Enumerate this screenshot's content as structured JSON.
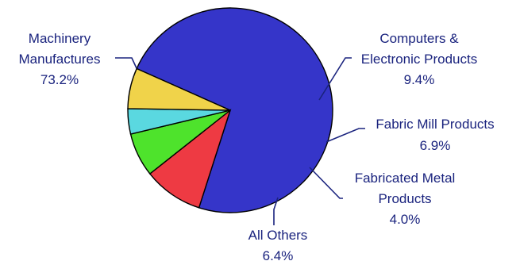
{
  "chart_data": {
    "type": "pie",
    "slices": [
      {
        "label_lines": [
          "Machinery",
          "Manufactures"
        ],
        "value_label": "73.2%",
        "value": 73.2,
        "color": "#3535c9"
      },
      {
        "label_lines": [
          "Computers &",
          "Electronic Products"
        ],
        "value_label": "9.4%",
        "value": 9.4,
        "color": "#ee3a43"
      },
      {
        "label_lines": [
          "Fabric Mill Products"
        ],
        "value_label": "6.9%",
        "value": 6.9,
        "color": "#4ee32c"
      },
      {
        "label_lines": [
          "Fabricated Metal",
          "Products"
        ],
        "value_label": "4.0%",
        "value": 4.0,
        "color": "#5ad8e0"
      },
      {
        "label_lines": [
          "All Others"
        ],
        "value_label": "6.4%",
        "value": 6.4,
        "color": "#f0d34a"
      }
    ]
  }
}
